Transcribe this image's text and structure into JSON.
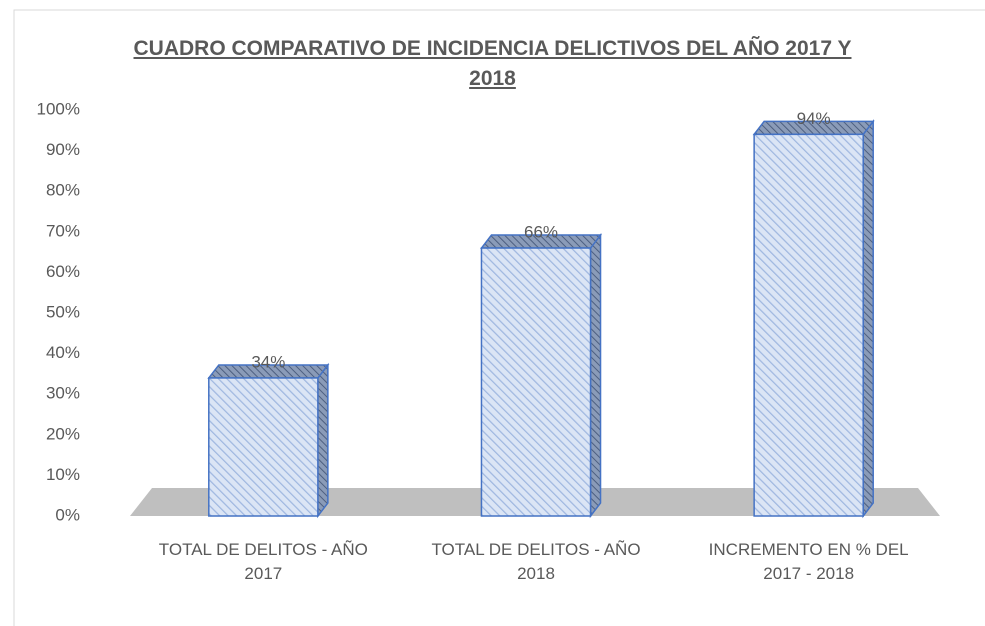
{
  "chart_data": {
    "type": "bar3d",
    "title": "CUADRO COMPARATIVO DE INCIDENCIA DELICTIVOS DEL AÑO 2017 Y 2018",
    "categories": [
      "TOTAL DE DELITOS - AÑO 2017",
      "TOTAL DE DELITOS - AÑO 2018",
      "INCREMENTO EN % DEL 2017 - 2018"
    ],
    "values": [
      34,
      66,
      94
    ],
    "value_labels": [
      "34%",
      "66%",
      "94%"
    ],
    "color": "#4472c4",
    "ylim": [
      0,
      100
    ],
    "yticks": [
      {
        "value": 0,
        "label": "0%"
      },
      {
        "value": 10,
        "label": "10%"
      },
      {
        "value": 20,
        "label": "20%"
      },
      {
        "value": 30,
        "label": "30%"
      },
      {
        "value": 40,
        "label": "40%"
      },
      {
        "value": 50,
        "label": "50%"
      },
      {
        "value": 60,
        "label": "60%"
      },
      {
        "value": 70,
        "label": "70%"
      },
      {
        "value": 80,
        "label": "80%"
      },
      {
        "value": 90,
        "label": "90%"
      },
      {
        "value": 100,
        "label": "100%"
      }
    ],
    "grid": false
  }
}
